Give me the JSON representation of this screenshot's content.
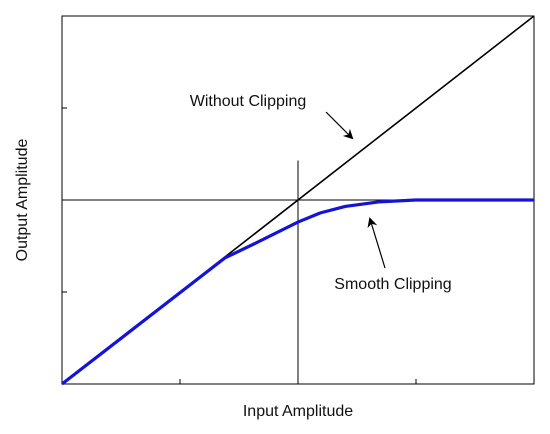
{
  "chart_data": {
    "type": "line",
    "xlabel": "Input Amplitude",
    "ylabel": "Output Amplitude",
    "annotations": [
      "Without Clipping",
      "Smooth Clipping"
    ],
    "xlim": [
      0,
      4
    ],
    "ylim": [
      0,
      4
    ],
    "xticks": [
      0,
      1,
      2,
      3,
      4
    ],
    "yticks": [
      0,
      1,
      2,
      3,
      4
    ],
    "hline": 2,
    "vline": {
      "x": 2,
      "y_end": 2.43
    },
    "series": [
      {
        "color": "#000000",
        "x": [
          0,
          4
        ],
        "values": [
          0,
          4
        ]
      },
      {
        "color": "#1414d8",
        "x": [
          0,
          1.38,
          1.64,
          2.0,
          2.19,
          2.4,
          2.69,
          3.0,
          4.0
        ],
        "values": [
          0,
          1.37,
          1.53,
          1.76,
          1.86,
          1.93,
          1.98,
          2.0,
          2.0
        ]
      }
    ]
  }
}
